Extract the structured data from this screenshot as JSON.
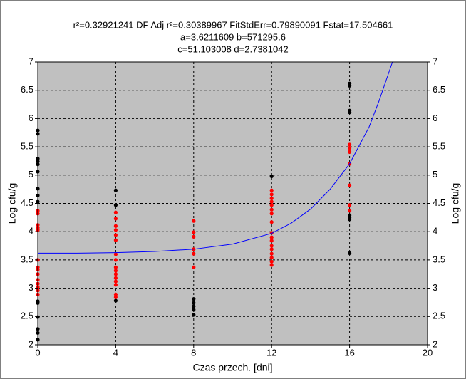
{
  "chart_data": {
    "type": "scatter",
    "title": [
      "r²=0.32921241  DF Adj r²=0.30389967  FitStdErr=0.79890091  Fstat=17.504661",
      "a=3.6211609 b=571295.6",
      "c=51.103008 d=2.7381042"
    ],
    "xlabel": "Czas przech. [dni]",
    "ylabel": "Log cfu/g",
    "y2label": "Log cfu/g",
    "xlim": [
      0,
      20
    ],
    "xticks": [
      0,
      4,
      8,
      12,
      16,
      20
    ],
    "ylim": [
      2,
      7
    ],
    "yticks": [
      2,
      2.5,
      3,
      3.5,
      4,
      4.5,
      5,
      5.5,
      6,
      6.5,
      7
    ],
    "y2lim": [
      2,
      7
    ],
    "y2ticks": [
      2,
      2.5,
      3,
      3.5,
      4,
      4.5,
      5,
      5.5,
      6,
      6.5,
      7
    ],
    "grid": true,
    "background": "#c0c0c0",
    "series": [
      {
        "color": "#000000",
        "x": [
          0,
          0,
          0,
          0,
          0,
          0,
          0,
          0,
          0,
          0,
          0,
          0,
          0,
          0,
          0,
          4,
          4,
          4,
          8,
          8,
          8,
          8,
          8,
          12,
          16,
          16,
          16,
          16,
          16,
          16,
          16,
          16
        ],
        "values": [
          5.79,
          5.73,
          5.29,
          5.24,
          5.19,
          5.06,
          4.76,
          4.64,
          4.53,
          2.77,
          2.74,
          2.49,
          2.28,
          2.21,
          2.09,
          4.73,
          4.47,
          2.78,
          2.81,
          2.74,
          2.68,
          2.62,
          2.53,
          4.98,
          6.62,
          6.58,
          6.14,
          6.11,
          4.29,
          4.25,
          4.22,
          3.62
        ]
      },
      {
        "color": "#ff0000",
        "x": [
          0,
          0,
          0,
          0,
          0,
          0,
          0,
          0,
          0,
          0,
          0,
          0,
          0,
          0,
          4,
          4,
          4,
          4,
          4,
          4,
          4,
          4,
          4,
          4,
          4,
          4,
          4,
          4,
          4,
          4,
          8,
          8,
          8,
          8,
          8,
          8,
          12,
          12,
          12,
          12,
          12,
          12,
          12,
          12,
          12,
          12,
          12,
          12,
          12,
          12,
          12,
          12,
          12,
          16,
          16,
          16,
          16,
          16,
          16,
          16
        ],
        "values": [
          4.37,
          4.32,
          4.12,
          4.07,
          4.03,
          3.5,
          3.37,
          3.33,
          3.25,
          3.15,
          3.08,
          3.02,
          2.96,
          2.89,
          4.34,
          4.23,
          4.1,
          4.03,
          3.94,
          3.85,
          3.6,
          3.5,
          3.37,
          3.31,
          3.25,
          3.18,
          3.12,
          3.06,
          2.89,
          2.84,
          4.19,
          3.99,
          3.91,
          3.69,
          3.61,
          3.37,
          4.73,
          4.66,
          4.59,
          4.53,
          4.47,
          4.39,
          4.32,
          4.17,
          3.98,
          3.9,
          3.84,
          3.75,
          3.69,
          3.61,
          3.54,
          3.47,
          3.41,
          5.54,
          5.48,
          5.41,
          5.2,
          4.82,
          4.47,
          4.37
        ]
      }
    ],
    "curve": {
      "type": "line",
      "color": "#0000ff",
      "x": [
        0,
        2,
        4,
        6,
        8,
        10,
        12,
        13,
        14,
        15,
        16,
        17,
        17.5,
        18,
        18.2
      ],
      "values": [
        3.62,
        3.62,
        3.63,
        3.65,
        3.69,
        3.78,
        3.97,
        4.15,
        4.4,
        4.75,
        5.2,
        5.85,
        6.3,
        6.8,
        7
      ]
    }
  }
}
